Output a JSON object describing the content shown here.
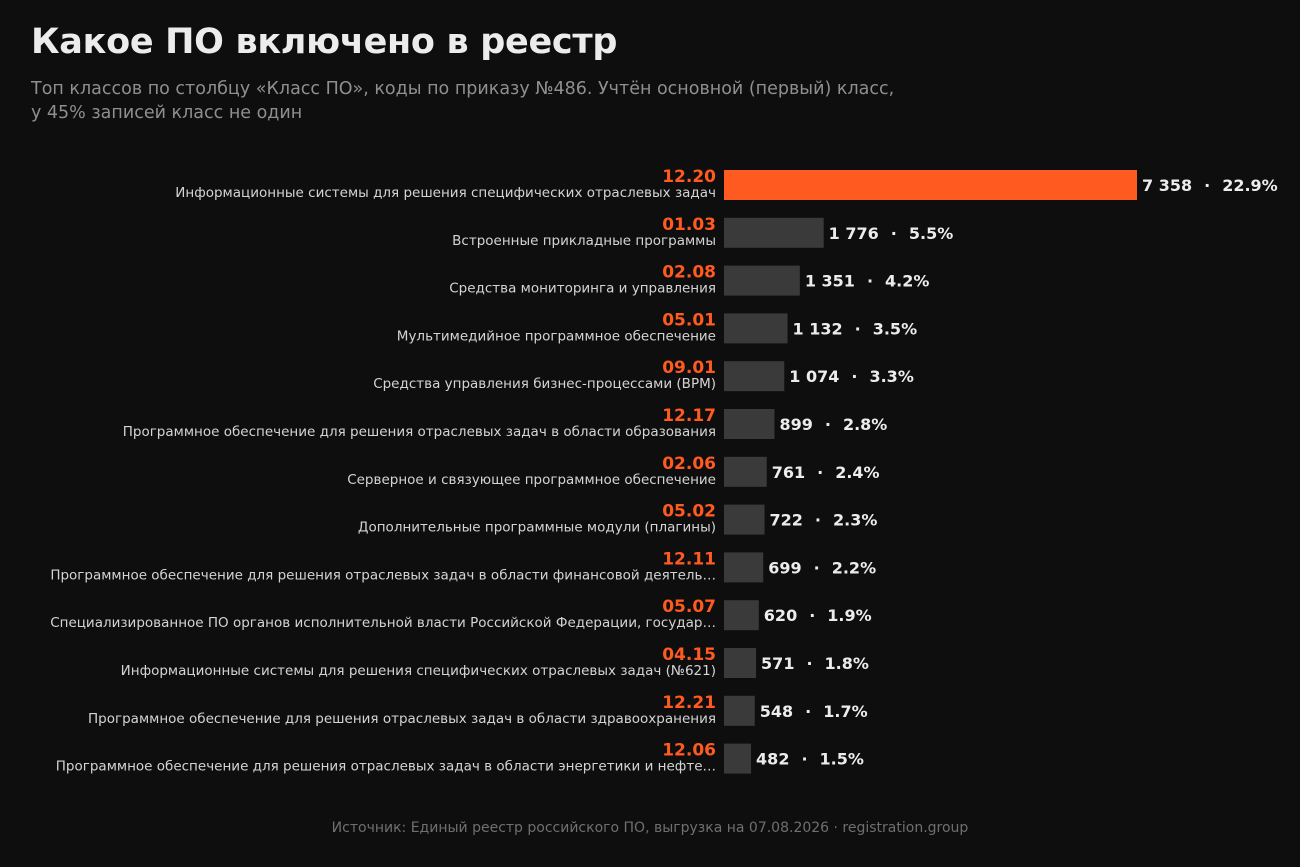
{
  "header": {
    "title": "Какое ПО включено в реестр",
    "subtitle_line1": "Топ классов по столбцу «Класс ПО», коды по приказу №486. Учтён основной (первый) класс,",
    "subtitle_line2": "у 45% записей класс не один"
  },
  "footer": {
    "source": "Источник: Единый реестр российского ПО, выгрузка на 07.08.2026  ·  registration.group"
  },
  "colors": {
    "accent": "#ff5a1f",
    "bar_default": "#3a3a3a",
    "background": "#0e0e0e"
  },
  "chart_data": {
    "type": "bar",
    "orientation": "horizontal",
    "grid": false,
    "xlim": [
      0,
      7358
    ],
    "highlight_index": 0,
    "categories": [
      {
        "code": "12.20",
        "name": "Информационные системы для решения специфических отраслевых задач"
      },
      {
        "code": "01.03",
        "name": "Встроенные прикладные программы"
      },
      {
        "code": "02.08",
        "name": "Средства мониторинга и управления"
      },
      {
        "code": "05.01",
        "name": "Мультимедийное программное обеспечение"
      },
      {
        "code": "09.01",
        "name": "Средства управления бизнес-процессами (BPM)"
      },
      {
        "code": "12.17",
        "name": "Программное обеспечение для решения отраслевых задач в области образования"
      },
      {
        "code": "02.06",
        "name": "Серверное и связующее программное обеспечение"
      },
      {
        "code": "05.02",
        "name": "Дополнительные программные модули (плагины)"
      },
      {
        "code": "12.11",
        "name": "Программное обеспечение для решения отраслевых задач в области финансовой деятель…"
      },
      {
        "code": "05.07",
        "name": "Специализированное ПО органов исполнительной власти Российской Федерации, государ…"
      },
      {
        "code": "04.15",
        "name": "Информационные системы для решения специфических отраслевых задач (№621)"
      },
      {
        "code": "12.21",
        "name": "Программное обеспечение для решения отраслевых задач в области здравоохранения"
      },
      {
        "code": "12.06",
        "name": "Программное обеспечение для решения отраслевых задач в области энергетики и нефте…"
      }
    ],
    "values": [
      7358,
      1776,
      1351,
      1132,
      1074,
      899,
      761,
      722,
      699,
      620,
      571,
      548,
      482
    ],
    "value_labels": [
      "7 358",
      "1 776",
      "1 351",
      "1 132",
      "1 074",
      "899",
      "761",
      "722",
      "699",
      "620",
      "571",
      "548",
      "482"
    ],
    "percent_labels": [
      "22.9%",
      "5.5%",
      "4.2%",
      "3.5%",
      "3.3%",
      "2.8%",
      "2.4%",
      "2.3%",
      "2.2%",
      "1.9%",
      "1.8%",
      "1.7%",
      "1.5%"
    ],
    "separator": "·"
  }
}
